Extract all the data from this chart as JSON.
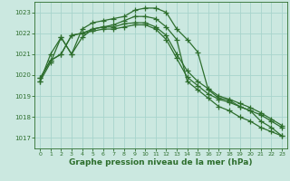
{
  "bg_color": "#cbe8e0",
  "grid_color": "#a8d4cc",
  "line_color": "#2d6e2d",
  "marker": "+",
  "markersize": 4,
  "linewidth": 0.9,
  "xlabel": "Graphe pression niveau de la mer (hPa)",
  "xlabel_fontsize": 6.5,
  "xlim": [
    -0.5,
    23.5
  ],
  "ylim": [
    1016.5,
    1023.5
  ],
  "yticks": [
    1017,
    1018,
    1019,
    1020,
    1021,
    1022,
    1023
  ],
  "xticks": [
    0,
    1,
    2,
    3,
    4,
    5,
    6,
    7,
    8,
    9,
    10,
    11,
    12,
    13,
    14,
    15,
    16,
    17,
    18,
    19,
    20,
    21,
    22,
    23
  ],
  "series": [
    [
      1019.7,
      1020.6,
      1021.8,
      1021.0,
      1022.2,
      1022.5,
      1022.6,
      1022.7,
      1022.8,
      1023.1,
      1023.2,
      1023.2,
      1023.0,
      1022.2,
      1021.7,
      1021.1,
      1019.3,
      1018.9,
      1018.8,
      1018.5,
      1018.3,
      1017.8,
      1017.5,
      1017.1
    ],
    [
      1019.7,
      1021.0,
      1021.8,
      1021.0,
      1021.8,
      1022.2,
      1022.3,
      1022.4,
      1022.6,
      1022.8,
      1022.8,
      1022.7,
      1022.3,
      1021.7,
      1019.7,
      1019.3,
      1018.9,
      1018.5,
      1018.3,
      1018.0,
      1017.8,
      1017.5,
      1017.3,
      1017.1
    ],
    [
      1019.85,
      1020.7,
      1021.0,
      1021.9,
      1022.0,
      1022.2,
      1022.3,
      1022.3,
      1022.45,
      1022.5,
      1022.5,
      1022.3,
      1021.9,
      1021.0,
      1020.2,
      1019.7,
      1019.35,
      1019.0,
      1018.85,
      1018.65,
      1018.45,
      1018.2,
      1017.9,
      1017.6
    ],
    [
      1019.85,
      1020.7,
      1021.0,
      1021.9,
      1022.0,
      1022.1,
      1022.2,
      1022.2,
      1022.3,
      1022.4,
      1022.4,
      1022.2,
      1021.7,
      1020.8,
      1019.9,
      1019.5,
      1019.1,
      1018.85,
      1018.7,
      1018.5,
      1018.3,
      1018.1,
      1017.8,
      1017.5
    ]
  ]
}
